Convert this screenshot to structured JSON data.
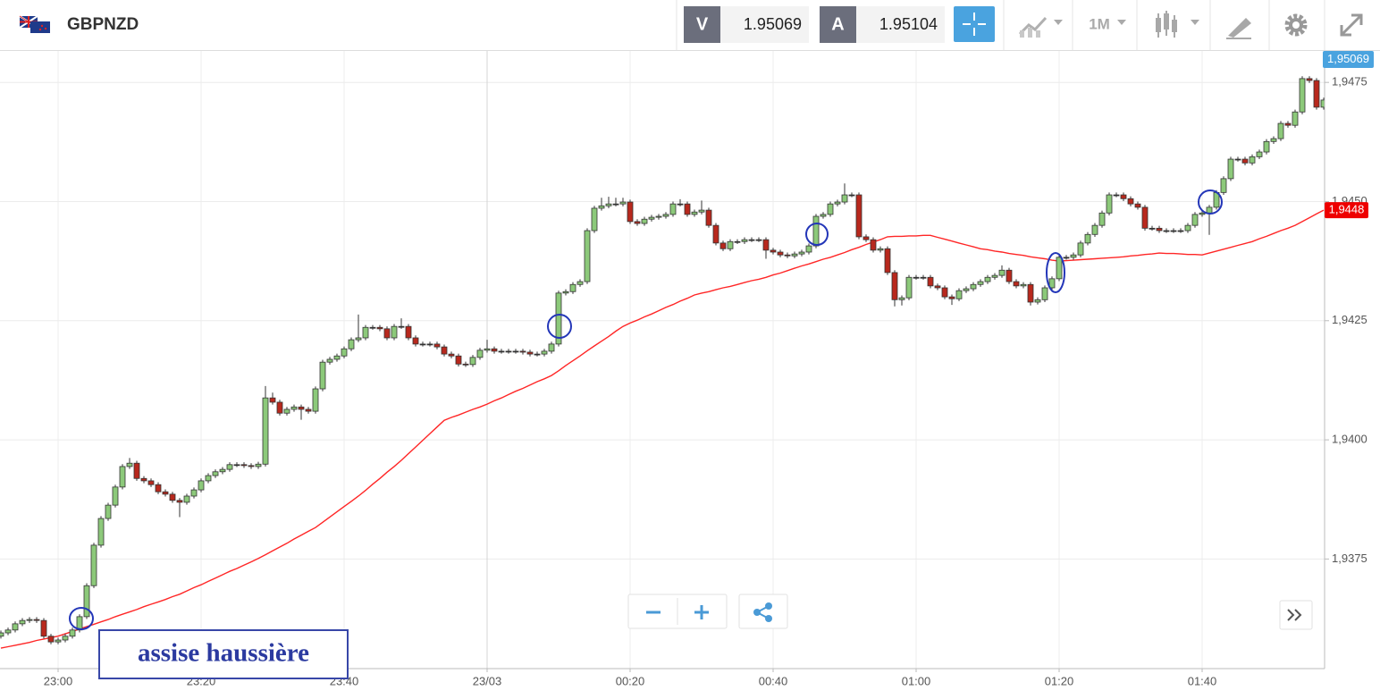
{
  "header": {
    "symbol": "GBPNZD",
    "bid_label": "V",
    "bid": "1.95069",
    "ask_label": "A",
    "ask": "1.95104",
    "timeframe": "1M"
  },
  "chart_data": {
    "type": "candlestick",
    "categories": [
      null,
      null,
      null,
      null,
      null,
      null,
      null,
      null,
      "23:00",
      null,
      null,
      null,
      null,
      null,
      null,
      null,
      null,
      null,
      null,
      null,
      null,
      null,
      null,
      null,
      null,
      null,
      null,
      null,
      "23:20",
      null,
      null,
      null,
      null,
      null,
      null,
      null,
      null,
      null,
      null,
      null,
      null,
      null,
      null,
      null,
      null,
      null,
      null,
      null,
      "23:40",
      null,
      null,
      null,
      null,
      null,
      null,
      null,
      null,
      null,
      null,
      null,
      null,
      null,
      null,
      null,
      null,
      null,
      null,
      null,
      "23/03",
      null,
      null,
      null,
      null,
      null,
      null,
      null,
      null,
      null,
      null,
      null,
      null,
      null,
      null,
      null,
      null,
      null,
      null,
      null,
      "00:20",
      null,
      null,
      null,
      null,
      null,
      null,
      null,
      null,
      null,
      null,
      null,
      null,
      null,
      null,
      null,
      null,
      null,
      null,
      null,
      "00:40",
      null,
      null,
      null,
      null,
      null,
      null,
      null,
      null,
      null,
      null,
      null,
      null,
      null,
      null,
      null,
      null,
      null,
      null,
      null,
      "01:00",
      null,
      null,
      null,
      null,
      null,
      null,
      null,
      null,
      null,
      null,
      null,
      null,
      null,
      null,
      null,
      null,
      null,
      null,
      null,
      "01:20",
      null,
      null,
      null,
      null,
      null,
      null,
      null,
      null,
      null,
      null,
      null,
      null,
      null,
      null,
      null,
      null,
      null,
      null,
      null,
      "01:40",
      null,
      null,
      null,
      null,
      null,
      null,
      null,
      null,
      null,
      null,
      null,
      null,
      null,
      null,
      null,
      null,
      null
    ],
    "open": [
      1.93588,
      1.93595,
      1.93601,
      1.93614,
      1.93621,
      1.93623,
      1.93621,
      1.93588,
      1.93576,
      1.9358,
      1.93588,
      1.93601,
      1.93629,
      1.93694,
      1.93779,
      1.93835,
      1.93863,
      1.93901,
      1.93944,
      1.93951,
      1.93919,
      1.93914,
      1.93906,
      1.93891,
      1.93886,
      1.93873,
      1.93869,
      1.93882,
      1.93895,
      1.93914,
      1.93925,
      1.93933,
      1.93938,
      1.93948,
      1.93948,
      1.93946,
      1.93944,
      1.93949,
      1.94088,
      1.94079,
      1.94056,
      1.94064,
      1.94069,
      1.94064,
      1.9406,
      1.94107,
      1.94163,
      1.94169,
      1.94176,
      1.94191,
      1.9421,
      1.94214,
      1.94236,
      1.94236,
      1.94233,
      1.94214,
      1.94238,
      1.94238,
      1.94214,
      1.94201,
      1.94201,
      1.94201,
      1.94195,
      1.9418,
      1.94176,
      1.94159,
      1.94158,
      1.94173,
      1.94188,
      1.94191,
      1.94186,
      1.94186,
      1.94186,
      1.94186,
      1.94184,
      1.9418,
      1.9418,
      1.94186,
      1.94201,
      1.94308,
      1.94311,
      1.94326,
      1.94332,
      1.94439,
      1.94486,
      1.94491,
      1.94495,
      1.94495,
      1.94499,
      1.94458,
      1.94454,
      1.94463,
      1.94467,
      1.94469,
      1.94473,
      1.94495,
      1.94495,
      1.94473,
      1.94478,
      1.94482,
      1.9445,
      1.94413,
      1.94401,
      1.94416,
      1.94416,
      1.9442,
      1.9442,
      1.9442,
      1.94398,
      1.94394,
      1.94388,
      1.94386,
      1.9439,
      1.94394,
      1.94407,
      1.94469,
      1.94473,
      1.94495,
      1.94499,
      1.94514,
      1.94514,
      1.94426,
      1.9442,
      1.94398,
      1.94401,
      1.94351,
      1.94294,
      1.94298,
      1.94341,
      1.94341,
      1.94341,
      1.94323,
      1.94319,
      1.943,
      1.94296,
      1.94313,
      1.94317,
      1.94326,
      1.94332,
      1.94341,
      1.94345,
      1.94356,
      1.94332,
      1.94323,
      1.94326,
      1.94289,
      1.94294,
      1.94319,
      1.94338,
      1.94383,
      1.94383,
      1.94388,
      1.94413,
      1.94431,
      1.9445,
      1.94476,
      1.94514,
      1.94514,
      1.94506,
      1.94495,
      1.94488,
      1.94444,
      1.94444,
      1.94439,
      1.94439,
      1.94439,
      1.94439,
      1.9445,
      1.94473,
      1.94476,
      1.94488,
      1.94519,
      1.94548,
      1.94589,
      1.94589,
      1.94581,
      1.94594,
      1.94604,
      1.94626,
      1.94632,
      1.94664,
      1.9466,
      1.94688,
      1.94758,
      1.94754,
      1.94698
    ],
    "high": [
      1.936,
      1.93606,
      1.93619,
      1.93626,
      1.93628,
      1.93628,
      1.93626,
      1.93593,
      1.93585,
      1.93593,
      1.93606,
      1.93634,
      1.93699,
      1.93784,
      1.9384,
      1.93868,
      1.93906,
      1.93949,
      1.93962,
      1.93956,
      1.93924,
      1.93919,
      1.93911,
      1.93896,
      1.93891,
      1.93878,
      1.93887,
      1.939,
      1.93919,
      1.9393,
      1.93938,
      1.93943,
      1.93953,
      1.93953,
      1.93953,
      1.93951,
      1.93954,
      1.94113,
      1.94099,
      1.94084,
      1.94069,
      1.94074,
      1.94074,
      1.94069,
      1.94112,
      1.94168,
      1.94174,
      1.94181,
      1.94196,
      1.94215,
      1.94263,
      1.94241,
      1.94241,
      1.94241,
      1.94238,
      1.94243,
      1.94255,
      1.94243,
      1.94219,
      1.94206,
      1.94206,
      1.94206,
      1.942,
      1.94185,
      1.94181,
      1.94164,
      1.94178,
      1.94193,
      1.9421,
      1.94196,
      1.94191,
      1.94191,
      1.94191,
      1.94191,
      1.94189,
      1.94185,
      1.94191,
      1.94206,
      1.94313,
      1.94316,
      1.94331,
      1.94337,
      1.94444,
      1.94491,
      1.94508,
      1.9451,
      1.94508,
      1.94508,
      1.94504,
      1.94463,
      1.94468,
      1.94472,
      1.94474,
      1.94478,
      1.945,
      1.94505,
      1.945,
      1.94483,
      1.94502,
      1.94487,
      1.94455,
      1.94418,
      1.94421,
      1.94421,
      1.94425,
      1.94425,
      1.94425,
      1.94425,
      1.94403,
      1.94399,
      1.94393,
      1.94395,
      1.94399,
      1.94412,
      1.94474,
      1.94478,
      1.945,
      1.94504,
      1.94538,
      1.94519,
      1.94519,
      1.94431,
      1.94425,
      1.94406,
      1.94406,
      1.94356,
      1.94303,
      1.94346,
      1.94346,
      1.94346,
      1.94346,
      1.94328,
      1.94324,
      1.94305,
      1.94318,
      1.94322,
      1.94331,
      1.94337,
      1.94346,
      1.9435,
      1.94366,
      1.94361,
      1.94337,
      1.94331,
      1.94331,
      1.94299,
      1.94324,
      1.94343,
      1.94388,
      1.94388,
      1.94393,
      1.94418,
      1.94436,
      1.94455,
      1.94481,
      1.94519,
      1.94519,
      1.94519,
      1.94511,
      1.945,
      1.94493,
      1.94449,
      1.94449,
      1.94444,
      1.94444,
      1.94444,
      1.94455,
      1.94478,
      1.94481,
      1.94493,
      1.94524,
      1.94553,
      1.94594,
      1.94594,
      1.94594,
      1.94599,
      1.94609,
      1.94631,
      1.94637,
      1.94669,
      1.94669,
      1.94693,
      1.94763,
      1.94763,
      1.94759,
      1.94718
    ],
    "low": [
      1.93583,
      1.9359,
      1.93596,
      1.93609,
      1.93616,
      1.93616,
      1.93583,
      1.93571,
      1.93571,
      1.93575,
      1.93583,
      1.93596,
      1.93624,
      1.93689,
      1.93774,
      1.9383,
      1.93858,
      1.93896,
      1.93939,
      1.93914,
      1.93909,
      1.93901,
      1.93886,
      1.93881,
      1.93868,
      1.93838,
      1.93864,
      1.93877,
      1.9389,
      1.93909,
      1.9392,
      1.93928,
      1.93933,
      1.93943,
      1.93941,
      1.93939,
      1.93939,
      1.93944,
      1.94074,
      1.94051,
      1.94051,
      1.94059,
      1.94042,
      1.94055,
      1.94055,
      1.94102,
      1.94158,
      1.94164,
      1.94171,
      1.94186,
      1.94205,
      1.94209,
      1.94231,
      1.94228,
      1.94209,
      1.94209,
      1.94233,
      1.94209,
      1.94196,
      1.94196,
      1.94196,
      1.9419,
      1.94175,
      1.94171,
      1.94154,
      1.94153,
      1.94153,
      1.94168,
      1.94183,
      1.94181,
      1.94181,
      1.94181,
      1.94181,
      1.94179,
      1.94175,
      1.94175,
      1.94175,
      1.94181,
      1.94196,
      1.94303,
      1.94306,
      1.94321,
      1.94327,
      1.94434,
      1.94481,
      1.94486,
      1.9449,
      1.9449,
      1.94453,
      1.94449,
      1.94449,
      1.94458,
      1.94462,
      1.94464,
      1.94468,
      1.9449,
      1.94468,
      1.94468,
      1.94473,
      1.94445,
      1.94408,
      1.94396,
      1.94396,
      1.94411,
      1.94411,
      1.94415,
      1.94415,
      1.9438,
      1.94389,
      1.94383,
      1.94381,
      1.94381,
      1.94385,
      1.94389,
      1.94402,
      1.94464,
      1.94468,
      1.9449,
      1.94494,
      1.94509,
      1.94421,
      1.94415,
      1.94393,
      1.94393,
      1.94346,
      1.9428,
      1.94282,
      1.94293,
      1.94336,
      1.94336,
      1.94318,
      1.94314,
      1.94295,
      1.94283,
      1.94291,
      1.94308,
      1.94312,
      1.94321,
      1.94327,
      1.94336,
      1.9434,
      1.94327,
      1.94318,
      1.94318,
      1.94282,
      1.94284,
      1.94289,
      1.94314,
      1.94333,
      1.94378,
      1.94378,
      1.94383,
      1.94408,
      1.94426,
      1.94445,
      1.94471,
      1.94509,
      1.94501,
      1.9449,
      1.94483,
      1.94439,
      1.94439,
      1.94434,
      1.94434,
      1.94434,
      1.94434,
      1.94434,
      1.94445,
      1.94468,
      1.9443,
      1.94483,
      1.94514,
      1.94543,
      1.94584,
      1.94576,
      1.94576,
      1.94589,
      1.94599,
      1.94621,
      1.94627,
      1.94655,
      1.94655,
      1.94683,
      1.94749,
      1.94693,
      1.94693
    ],
    "close": [
      1.93595,
      1.93601,
      1.93614,
      1.93621,
      1.93623,
      1.93621,
      1.93588,
      1.93576,
      1.9358,
      1.93588,
      1.93601,
      1.93629,
      1.93694,
      1.93779,
      1.93835,
      1.93863,
      1.93901,
      1.93944,
      1.93951,
      1.93919,
      1.93914,
      1.93906,
      1.93891,
      1.93886,
      1.93873,
      1.93869,
      1.93882,
      1.93895,
      1.93914,
      1.93925,
      1.93933,
      1.93938,
      1.93948,
      1.93948,
      1.93946,
      1.93944,
      1.93949,
      1.94088,
      1.94079,
      1.94056,
      1.94064,
      1.94069,
      1.94064,
      1.9406,
      1.94107,
      1.94163,
      1.94169,
      1.94176,
      1.94191,
      1.9421,
      1.94214,
      1.94236,
      1.94236,
      1.94233,
      1.94214,
      1.94238,
      1.94238,
      1.94214,
      1.94201,
      1.94201,
      1.94201,
      1.94195,
      1.9418,
      1.94176,
      1.94159,
      1.94158,
      1.94173,
      1.94188,
      1.94191,
      1.94186,
      1.94186,
      1.94186,
      1.94186,
      1.94184,
      1.9418,
      1.9418,
      1.94186,
      1.94201,
      1.94308,
      1.94311,
      1.94326,
      1.94332,
      1.94439,
      1.94486,
      1.94491,
      1.94495,
      1.94495,
      1.94499,
      1.94458,
      1.94454,
      1.94463,
      1.94467,
      1.94469,
      1.94473,
      1.94495,
      1.94495,
      1.94473,
      1.94478,
      1.94482,
      1.9445,
      1.94413,
      1.94401,
      1.94416,
      1.94416,
      1.9442,
      1.9442,
      1.9442,
      1.94398,
      1.94394,
      1.94388,
      1.94386,
      1.9439,
      1.94394,
      1.94407,
      1.94469,
      1.94473,
      1.94495,
      1.94499,
      1.94514,
      1.94514,
      1.94426,
      1.9442,
      1.94398,
      1.94401,
      1.94351,
      1.94294,
      1.94298,
      1.94341,
      1.94341,
      1.94341,
      1.94323,
      1.94319,
      1.943,
      1.94296,
      1.94313,
      1.94317,
      1.94326,
      1.94332,
      1.94341,
      1.94345,
      1.94356,
      1.94332,
      1.94323,
      1.94326,
      1.94289,
      1.94294,
      1.94319,
      1.94338,
      1.94383,
      1.94383,
      1.94388,
      1.94413,
      1.94431,
      1.9445,
      1.94476,
      1.94514,
      1.94514,
      1.94506,
      1.94495,
      1.94488,
      1.94444,
      1.94444,
      1.94439,
      1.94439,
      1.94439,
      1.94439,
      1.9445,
      1.94473,
      1.94476,
      1.94488,
      1.94519,
      1.94548,
      1.94589,
      1.94589,
      1.94581,
      1.94594,
      1.94604,
      1.94626,
      1.94632,
      1.94664,
      1.9466,
      1.94688,
      1.94758,
      1.94754,
      1.94698,
      1.94713
    ],
    "up_color": "#8cc97a",
    "down_color": "#b8281d",
    "outline_color": "#333333",
    "moving_average": {
      "color": "#ff2626",
      "last_label": "1,9448",
      "values": [
        1.93563,
        1.93566,
        1.93569,
        1.93572,
        1.93575,
        1.93579,
        1.93582,
        1.93585,
        1.93588,
        1.93593,
        1.93598,
        1.93603,
        1.93608,
        1.93613,
        1.93618,
        1.93623,
        1.93629,
        1.93634,
        1.93639,
        1.93644,
        1.9365,
        1.93655,
        1.9366,
        1.93665,
        1.93671,
        1.93676,
        1.93683,
        1.9369,
        1.93696,
        1.93703,
        1.9371,
        1.93717,
        1.93724,
        1.9373,
        1.93737,
        1.93744,
        1.93751,
        1.93759,
        1.93767,
        1.93775,
        1.93783,
        1.93792,
        1.938,
        1.93808,
        1.93816,
        1.93827,
        1.93838,
        1.93849,
        1.9386,
        1.93871,
        1.93882,
        1.93894,
        1.93907,
        1.93919,
        1.93932,
        1.93944,
        1.93957,
        1.93971,
        1.93985,
        1.93999,
        1.94013,
        1.94027,
        1.94041,
        1.94047,
        1.94052,
        1.94058,
        1.94064,
        1.94069,
        1.94075,
        1.94082,
        1.94088,
        1.94095,
        1.94102,
        1.94108,
        1.94115,
        1.94122,
        1.94128,
        1.94135,
        1.94145,
        1.94156,
        1.94166,
        1.94176,
        1.94187,
        1.94197,
        1.94207,
        1.94217,
        1.94228,
        1.94238,
        1.94245,
        1.94251,
        1.94258,
        1.94264,
        1.94271,
        1.94278,
        1.94284,
        1.94291,
        1.94297,
        1.94304,
        1.94308,
        1.94311,
        1.94315,
        1.94319,
        1.94322,
        1.94326,
        1.9433,
        1.94334,
        1.94337,
        1.94341,
        1.94346,
        1.9435,
        1.94355,
        1.9436,
        1.94365,
        1.94369,
        1.94374,
        1.94379,
        1.94383,
        1.94388,
        1.94393,
        1.94399,
        1.94404,
        1.9441,
        1.94415,
        1.9442,
        1.94426,
        1.94427,
        1.94427,
        1.94428,
        1.94428,
        1.94429,
        1.94429,
        1.94425,
        1.94421,
        1.94417,
        1.94413,
        1.94409,
        1.94405,
        1.94401,
        1.94399,
        1.94396,
        1.94394,
        1.94391,
        1.94389,
        1.94387,
        1.94384,
        1.94382,
        1.9438,
        1.94377,
        1.94375,
        1.94376,
        1.94377,
        1.94378,
        1.94379,
        1.9438,
        1.94381,
        1.94382,
        1.94383,
        1.94384,
        1.94386,
        1.94387,
        1.94389,
        1.9439,
        1.94392,
        1.94391,
        1.94391,
        1.9439,
        1.94389,
        1.94389,
        1.94388,
        1.94392,
        1.94396,
        1.944,
        1.94404,
        1.94408,
        1.94412,
        1.94416,
        1.94422,
        1.94427,
        1.94433,
        1.94439,
        1.94444,
        1.9445,
        1.94458,
        1.94466,
        1.94474,
        1.94482
      ]
    },
    "price_tag": "1,95069",
    "annotation": "assise haussière",
    "ylim": [
      1.9352,
      1.94816
    ],
    "yticks": [
      {
        "value": 1.9375,
        "label": "1,9375"
      },
      {
        "value": 1.94,
        "label": "1,9400"
      },
      {
        "value": 1.9425,
        "label": "1,9425"
      },
      {
        "value": 1.945,
        "label": "1,9450"
      },
      {
        "value": 1.9475,
        "label": "1,9475"
      }
    ],
    "grid": true
  }
}
